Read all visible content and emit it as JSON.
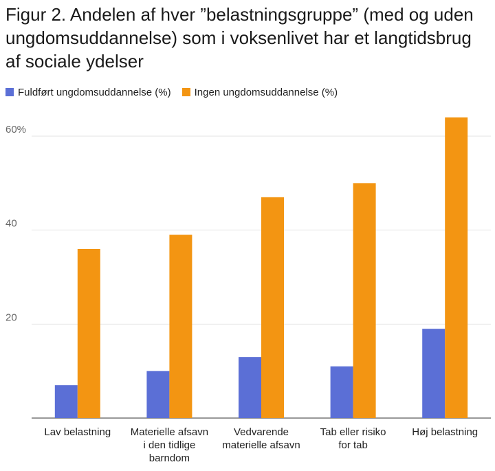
{
  "chart_data": {
    "type": "bar",
    "title": "Figur 2. Andelen af hver ”belastningsgruppe” (med og uden ungdomsuddannelse) som i voksenlivet har et langtidsbrug af sociale ydelser",
    "categories": [
      [
        "Lav belastning"
      ],
      [
        "Materielle afsavn",
        "i den tidlige",
        "barndom"
      ],
      [
        "Vedvarende",
        "materielle afsavn"
      ],
      [
        "Tab eller risiko",
        "for tab"
      ],
      [
        "Høj belastning"
      ]
    ],
    "series": [
      {
        "name": "Fuldført ungdomsuddannelse (%)",
        "color": "#5b6fd6",
        "values": [
          7,
          10,
          13,
          11,
          19
        ]
      },
      {
        "name": "Ingen ungdomsuddannelse (%)",
        "color": "#f39512",
        "values": [
          36,
          39,
          47,
          50,
          64
        ]
      }
    ],
    "yticks": [
      20,
      40,
      60
    ],
    "ytick_labels": [
      "20",
      "40",
      "60%"
    ],
    "ylim": [
      0,
      66
    ],
    "grid": true,
    "legend_position": "top-left",
    "xlabel": "",
    "ylabel": ""
  }
}
